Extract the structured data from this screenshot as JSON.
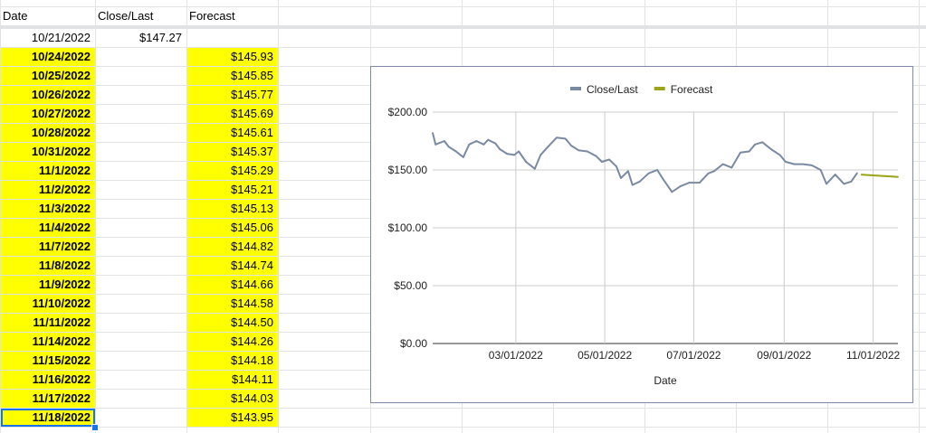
{
  "sheet": {
    "headers": [
      "Date",
      "Close/Last",
      "Forecast"
    ],
    "rows": [
      {
        "date": "10/21/2022",
        "close": "$147.27",
        "forecast": ""
      },
      {
        "date": "10/24/2022",
        "close": "",
        "forecast": "$145.93"
      },
      {
        "date": "10/25/2022",
        "close": "",
        "forecast": "$145.85"
      },
      {
        "date": "10/26/2022",
        "close": "",
        "forecast": "$145.77"
      },
      {
        "date": "10/27/2022",
        "close": "",
        "forecast": "$145.69"
      },
      {
        "date": "10/28/2022",
        "close": "",
        "forecast": "$145.61"
      },
      {
        "date": "10/31/2022",
        "close": "",
        "forecast": "$145.37"
      },
      {
        "date": "11/1/2022",
        "close": "",
        "forecast": "$145.29"
      },
      {
        "date": "11/2/2022",
        "close": "",
        "forecast": "$145.21"
      },
      {
        "date": "11/3/2022",
        "close": "",
        "forecast": "$145.13"
      },
      {
        "date": "11/4/2022",
        "close": "",
        "forecast": "$145.06"
      },
      {
        "date": "11/7/2022",
        "close": "",
        "forecast": "$144.82"
      },
      {
        "date": "11/8/2022",
        "close": "",
        "forecast": "$144.74"
      },
      {
        "date": "11/9/2022",
        "close": "",
        "forecast": "$144.66"
      },
      {
        "date": "11/10/2022",
        "close": "",
        "forecast": "$144.58"
      },
      {
        "date": "11/11/2022",
        "close": "",
        "forecast": "$144.50"
      },
      {
        "date": "11/14/2022",
        "close": "",
        "forecast": "$144.26"
      },
      {
        "date": "11/15/2022",
        "close": "",
        "forecast": "$144.18"
      },
      {
        "date": "11/16/2022",
        "close": "",
        "forecast": "$144.11"
      },
      {
        "date": "11/17/2022",
        "close": "",
        "forecast": "$144.03"
      },
      {
        "date": "11/18/2022",
        "close": "",
        "forecast": "$143.95"
      }
    ],
    "highlight_color": "#ffff00",
    "selection_color": "#1a73e8"
  },
  "chart_data": {
    "type": "line",
    "title": "",
    "xlabel": "Date",
    "ylabel": "",
    "ylim": [
      0,
      200
    ],
    "yticks": [
      "$0.00",
      "$50.00",
      "$100.00",
      "$150.00",
      "$200.00"
    ],
    "ytick_values": [
      0,
      50,
      100,
      150,
      200
    ],
    "xticks": [
      "03/01/2022",
      "05/01/2022",
      "07/01/2022",
      "09/01/2022",
      "11/01/2022"
    ],
    "xtick_dates": [
      "2022-03-01",
      "2022-05-01",
      "2022-07-01",
      "2022-09-01",
      "2022-11-01"
    ],
    "xlim": [
      "2022-01-03",
      "2022-11-18"
    ],
    "grid": true,
    "legend_position": "top",
    "series": [
      {
        "name": "Close/Last",
        "color": "#7a8aa3",
        "x": [
          "2022-01-03",
          "2022-01-05",
          "2022-01-07",
          "2022-01-11",
          "2022-01-14",
          "2022-01-19",
          "2022-01-24",
          "2022-01-28",
          "2022-02-02",
          "2022-02-07",
          "2022-02-10",
          "2022-02-15",
          "2022-02-18",
          "2022-02-23",
          "2022-02-28",
          "2022-03-03",
          "2022-03-08",
          "2022-03-14",
          "2022-03-18",
          "2022-03-23",
          "2022-03-29",
          "2022-04-04",
          "2022-04-08",
          "2022-04-13",
          "2022-04-19",
          "2022-04-25",
          "2022-04-29",
          "2022-05-04",
          "2022-05-09",
          "2022-05-12",
          "2022-05-17",
          "2022-05-20",
          "2022-05-25",
          "2022-05-31",
          "2022-06-06",
          "2022-06-10",
          "2022-06-16",
          "2022-06-22",
          "2022-06-28",
          "2022-07-05",
          "2022-07-11",
          "2022-07-15",
          "2022-07-21",
          "2022-07-27",
          "2022-08-02",
          "2022-08-08",
          "2022-08-12",
          "2022-08-17",
          "2022-08-23",
          "2022-08-29",
          "2022-09-02",
          "2022-09-08",
          "2022-09-14",
          "2022-09-20",
          "2022-09-26",
          "2022-09-30",
          "2022-10-06",
          "2022-10-12",
          "2022-10-17",
          "2022-10-21"
        ],
        "y": [
          182,
          172,
          173,
          175,
          170,
          166,
          161,
          172,
          175,
          172,
          176,
          173,
          168,
          164,
          163,
          166,
          157,
          151,
          163,
          170,
          178,
          177,
          171,
          167,
          166,
          162,
          157,
          159,
          153,
          143,
          149,
          137,
          140,
          147,
          150,
          142,
          131,
          136,
          139,
          139,
          147,
          149,
          155,
          152,
          165,
          166,
          172,
          174,
          168,
          163,
          157,
          155,
          155,
          154,
          150,
          138,
          146,
          138,
          140,
          147.27
        ]
      },
      {
        "name": "Forecast",
        "color": "#9aa51a",
        "x": [
          "2022-10-24",
          "2022-10-25",
          "2022-10-26",
          "2022-10-27",
          "2022-10-28",
          "2022-10-31",
          "2022-11-01",
          "2022-11-02",
          "2022-11-03",
          "2022-11-04",
          "2022-11-07",
          "2022-11-08",
          "2022-11-09",
          "2022-11-10",
          "2022-11-11",
          "2022-11-14",
          "2022-11-15",
          "2022-11-16",
          "2022-11-17",
          "2022-11-18"
        ],
        "y": [
          145.93,
          145.85,
          145.77,
          145.69,
          145.61,
          145.37,
          145.29,
          145.21,
          145.13,
          145.06,
          144.82,
          144.74,
          144.66,
          144.58,
          144.5,
          144.26,
          144.18,
          144.11,
          144.03,
          143.95
        ]
      }
    ]
  }
}
